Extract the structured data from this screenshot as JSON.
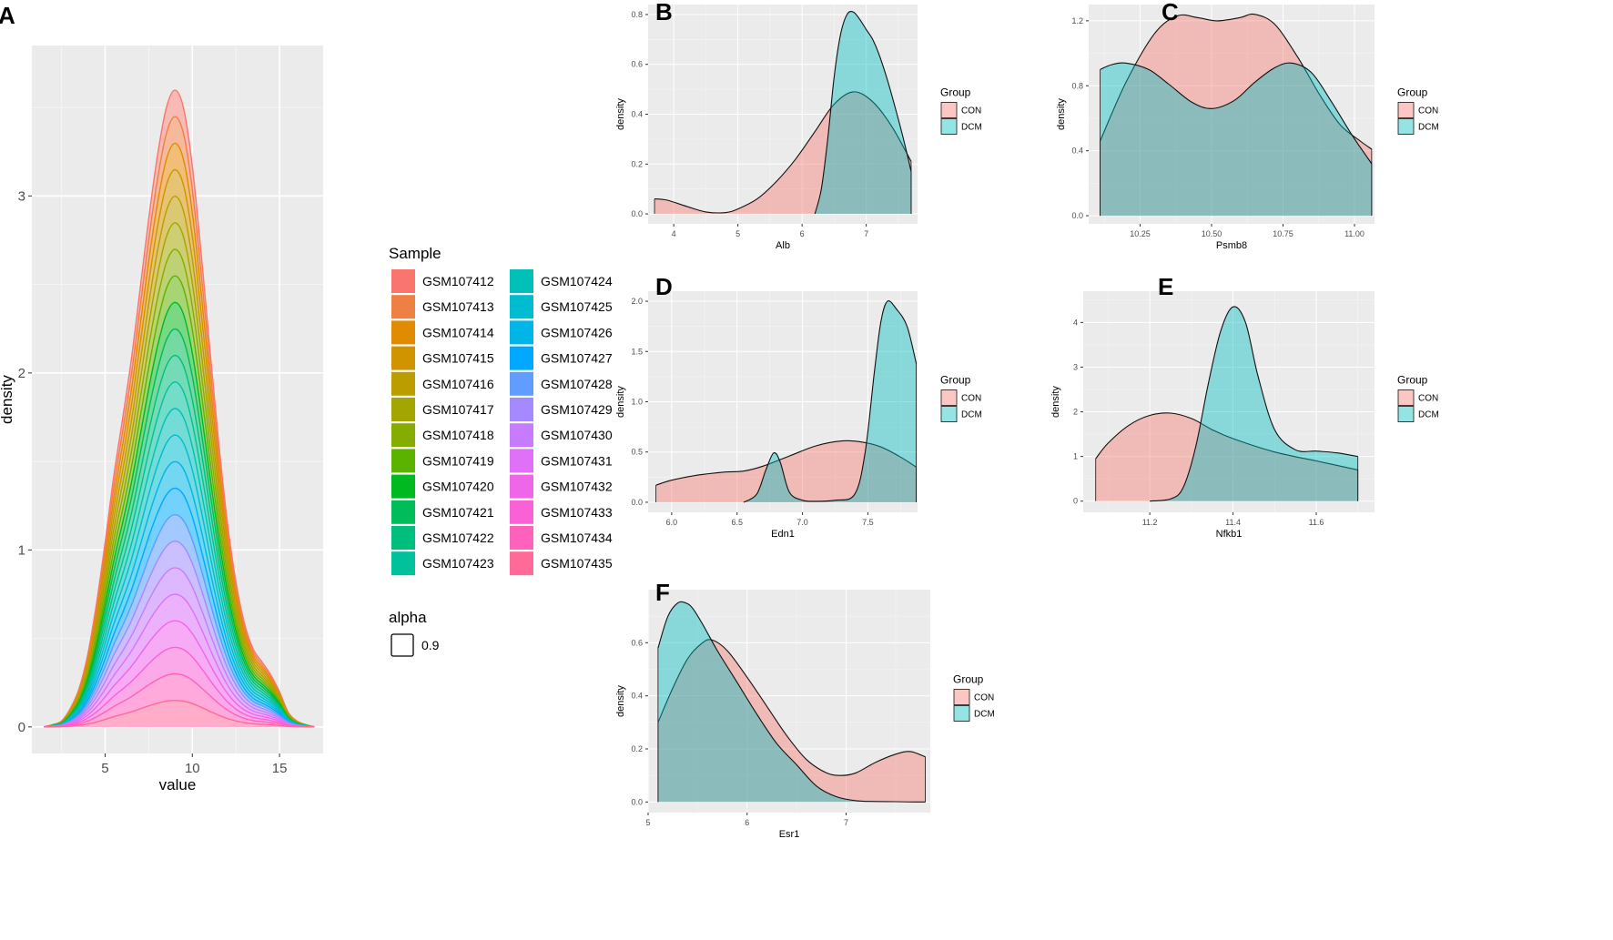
{
  "chart_data": [
    {
      "panel": "A",
      "type": "area",
      "title": "",
      "xlabel": "value",
      "ylabel": "density",
      "xlim": [
        0.8,
        17.5
      ],
      "ylim": [
        -0.15,
        3.85
      ],
      "x_ticks": [
        5,
        10,
        15
      ],
      "y_ticks": [
        0,
        1,
        2,
        3
      ],
      "grid": true,
      "legend": {
        "title": "Sample",
        "position": "right",
        "entries": [
          {
            "label": "GSM107412",
            "color": "#F8766D"
          },
          {
            "label": "GSM107413",
            "color": "#EE8043"
          },
          {
            "label": "GSM107414",
            "color": "#E08B00"
          },
          {
            "label": "GSM107415",
            "color": "#CF9400"
          },
          {
            "label": "GSM107416",
            "color": "#BB9D00"
          },
          {
            "label": "GSM107417",
            "color": "#A3A500"
          },
          {
            "label": "GSM107418",
            "color": "#85AD00"
          },
          {
            "label": "GSM107419",
            "color": "#5BB300"
          },
          {
            "label": "GSM107420",
            "color": "#00B81F"
          },
          {
            "label": "GSM107421",
            "color": "#00BC59"
          },
          {
            "label": "GSM107422",
            "color": "#00BF7D"
          },
          {
            "label": "GSM107423",
            "color": "#00C19C"
          },
          {
            "label": "GSM107424",
            "color": "#00C0B8"
          },
          {
            "label": "GSM107425",
            "color": "#00BCD1"
          },
          {
            "label": "GSM107426",
            "color": "#00B5E7"
          },
          {
            "label": "GSM107427",
            "color": "#00A9FF"
          },
          {
            "label": "GSM107428",
            "color": "#619CFF"
          },
          {
            "label": "GSM107429",
            "color": "#A58AFF"
          },
          {
            "label": "GSM107430",
            "color": "#C77CFF"
          },
          {
            "label": "GSM107431",
            "color": "#DF70F8"
          },
          {
            "label": "GSM107432",
            "color": "#F066E9"
          },
          {
            "label": "GSM107433",
            "color": "#FB61D7"
          },
          {
            "label": "GSM107434",
            "color": "#FF62BC"
          },
          {
            "label": "GSM107435",
            "color": "#FF6A98"
          }
        ],
        "alpha_title": "alpha",
        "alpha_value": "0.9"
      },
      "stacked_series_count": 24,
      "stacked_density_x": [
        1.5,
        2.0,
        2.5,
        3.0,
        3.5,
        4.0,
        4.5,
        5.0,
        5.5,
        6.0,
        6.5,
        7.0,
        7.5,
        8.0,
        8.5,
        9.0,
        9.5,
        10.0,
        10.5,
        11.0,
        11.5,
        12.0,
        12.5,
        13.0,
        13.5,
        14.0,
        14.5,
        15.0,
        15.5,
        16.0,
        16.5,
        17.0
      ],
      "stacked_density_top": [
        0.0,
        0.02,
        0.05,
        0.15,
        0.3,
        0.55,
        0.9,
        1.3,
        1.7,
        2.0,
        2.3,
        2.65,
        3.0,
        3.3,
        3.52,
        3.6,
        3.5,
        3.2,
        2.75,
        2.25,
        1.75,
        1.3,
        0.95,
        0.7,
        0.55,
        0.48,
        0.4,
        0.28,
        0.12,
        0.05,
        0.02,
        0.0
      ]
    },
    {
      "panel": "B",
      "type": "area",
      "xlabel": "Alb",
      "ylabel": "density",
      "xlim": [
        3.6,
        7.8
      ],
      "ylim": [
        -0.04,
        0.84
      ],
      "x_ticks": [
        4,
        5,
        6,
        7
      ],
      "y_ticks": [
        0.0,
        0.2,
        0.4,
        0.6,
        0.8
      ],
      "legend": {
        "title": "Group",
        "position": "right",
        "entries": [
          {
            "label": "CON",
            "color": "#F8766D"
          },
          {
            "label": "DCM",
            "color": "#00BFC4"
          }
        ]
      },
      "series": [
        {
          "name": "CON",
          "x": [
            3.7,
            3.9,
            4.2,
            4.5,
            4.8,
            5.0,
            5.3,
            5.6,
            5.9,
            6.2,
            6.5,
            6.8,
            7.1,
            7.4,
            7.7
          ],
          "values": [
            0.06,
            0.055,
            0.03,
            0.008,
            0.005,
            0.02,
            0.06,
            0.13,
            0.22,
            0.33,
            0.44,
            0.49,
            0.45,
            0.35,
            0.21
          ]
        },
        {
          "name": "DCM",
          "x": [
            6.2,
            6.3,
            6.4,
            6.5,
            6.6,
            6.7,
            6.8,
            6.9,
            7.0,
            7.1,
            7.2,
            7.35,
            7.5,
            7.6,
            7.7
          ],
          "values": [
            0.0,
            0.1,
            0.3,
            0.55,
            0.72,
            0.8,
            0.81,
            0.78,
            0.74,
            0.7,
            0.64,
            0.52,
            0.38,
            0.28,
            0.17
          ]
        }
      ]
    },
    {
      "panel": "C",
      "type": "area",
      "xlabel": "Psmb8",
      "ylabel": "density",
      "xlim": [
        10.07,
        11.07
      ],
      "ylim": [
        -0.05,
        1.3
      ],
      "x_ticks": [
        10.25,
        10.5,
        10.75,
        11.0
      ],
      "y_ticks": [
        0.0,
        0.4,
        0.8,
        1.2
      ],
      "legend": {
        "title": "Group",
        "position": "right",
        "entries": [
          {
            "label": "CON",
            "color": "#F8766D"
          },
          {
            "label": "DCM",
            "color": "#00BFC4"
          }
        ]
      },
      "series": [
        {
          "name": "CON",
          "x": [
            10.11,
            10.2,
            10.3,
            10.38,
            10.45,
            10.52,
            10.6,
            10.65,
            10.72,
            10.8,
            10.88,
            10.95,
            11.02,
            11.06
          ],
          "values": [
            0.46,
            0.82,
            1.12,
            1.23,
            1.22,
            1.2,
            1.22,
            1.24,
            1.18,
            0.98,
            0.74,
            0.56,
            0.46,
            0.41
          ]
        },
        {
          "name": "DCM",
          "x": [
            10.11,
            10.15,
            10.2,
            10.28,
            10.35,
            10.43,
            10.5,
            10.58,
            10.65,
            10.72,
            10.78,
            10.85,
            10.92,
            10.99,
            11.06
          ],
          "values": [
            0.9,
            0.93,
            0.94,
            0.9,
            0.81,
            0.7,
            0.66,
            0.71,
            0.82,
            0.91,
            0.94,
            0.88,
            0.7,
            0.5,
            0.32
          ]
        }
      ]
    },
    {
      "panel": "D",
      "type": "area",
      "xlabel": "Edn1",
      "ylabel": "density",
      "xlim": [
        5.82,
        7.88
      ],
      "ylim": [
        -0.1,
        2.1
      ],
      "x_ticks": [
        6.0,
        6.5,
        7.0,
        7.5
      ],
      "y_ticks": [
        0.0,
        0.5,
        1.0,
        1.5,
        2.0
      ],
      "legend": {
        "title": "Group",
        "position": "right",
        "entries": [
          {
            "label": "CON",
            "color": "#F8766D"
          },
          {
            "label": "DCM",
            "color": "#00BFC4"
          }
        ]
      },
      "series": [
        {
          "name": "CON",
          "x": [
            5.88,
            6.0,
            6.2,
            6.4,
            6.55,
            6.7,
            6.9,
            7.1,
            7.3,
            7.45,
            7.6,
            7.75,
            7.87
          ],
          "values": [
            0.17,
            0.22,
            0.27,
            0.3,
            0.31,
            0.36,
            0.46,
            0.56,
            0.61,
            0.6,
            0.55,
            0.45,
            0.35
          ]
        },
        {
          "name": "DCM",
          "x": [
            6.55,
            6.65,
            6.72,
            6.78,
            6.83,
            6.9,
            7.0,
            7.1,
            7.25,
            7.4,
            7.48,
            7.55,
            7.6,
            7.65,
            7.72,
            7.8,
            7.87
          ],
          "values": [
            0.0,
            0.08,
            0.32,
            0.49,
            0.4,
            0.1,
            0.02,
            0.01,
            0.02,
            0.08,
            0.5,
            1.3,
            1.8,
            2.0,
            1.92,
            1.75,
            1.38
          ]
        }
      ]
    },
    {
      "panel": "E",
      "type": "area",
      "xlabel": "Nfkb1",
      "ylabel": "density",
      "xlim": [
        11.04,
        11.74
      ],
      "ylim": [
        -0.25,
        4.7
      ],
      "x_ticks": [
        11.2,
        11.4,
        11.6
      ],
      "y_ticks": [
        0,
        1,
        2,
        3,
        4
      ],
      "legend": {
        "title": "Group",
        "position": "right",
        "entries": [
          {
            "label": "CON",
            "color": "#F8766D"
          },
          {
            "label": "DCM",
            "color": "#00BFC4"
          }
        ]
      },
      "series": [
        {
          "name": "CON",
          "x": [
            11.07,
            11.1,
            11.15,
            11.2,
            11.25,
            11.3,
            11.35,
            11.4,
            11.5,
            11.6,
            11.7
          ],
          "values": [
            0.95,
            1.3,
            1.7,
            1.92,
            1.97,
            1.85,
            1.6,
            1.4,
            1.1,
            0.9,
            0.7
          ]
        },
        {
          "name": "DCM",
          "x": [
            11.2,
            11.25,
            11.28,
            11.31,
            11.34,
            11.37,
            11.4,
            11.43,
            11.46,
            11.5,
            11.55,
            11.6,
            11.65,
            11.7
          ],
          "values": [
            0.0,
            0.05,
            0.3,
            1.2,
            2.6,
            3.8,
            4.35,
            4.0,
            2.8,
            1.6,
            1.15,
            1.12,
            1.08,
            1.0
          ]
        }
      ]
    },
    {
      "panel": "F",
      "type": "area",
      "xlabel": "Esr1",
      "ylabel": "density",
      "xlim": [
        5.0,
        7.85
      ],
      "ylim": [
        -0.04,
        0.8
      ],
      "x_ticks": [
        5,
        6,
        7
      ],
      "y_ticks": [
        0.0,
        0.2,
        0.4,
        0.6
      ],
      "legend": {
        "title": "Group",
        "position": "right",
        "entries": [
          {
            "label": "CON",
            "color": "#F8766D"
          },
          {
            "label": "DCM",
            "color": "#00BFC4"
          }
        ]
      },
      "series": [
        {
          "name": "CON",
          "x": [
            5.1,
            5.25,
            5.4,
            5.55,
            5.65,
            5.8,
            6.0,
            6.2,
            6.4,
            6.6,
            6.8,
            6.95,
            7.1,
            7.3,
            7.5,
            7.65,
            7.8
          ],
          "values": [
            0.3,
            0.43,
            0.54,
            0.6,
            0.61,
            0.57,
            0.47,
            0.36,
            0.25,
            0.16,
            0.11,
            0.1,
            0.11,
            0.15,
            0.18,
            0.19,
            0.17
          ]
        },
        {
          "name": "DCM",
          "x": [
            5.1,
            5.2,
            5.3,
            5.38,
            5.45,
            5.55,
            5.7,
            5.9,
            6.1,
            6.3,
            6.5,
            6.7,
            6.9,
            7.1,
            7.3,
            7.5,
            7.7,
            7.8
          ],
          "values": [
            0.58,
            0.7,
            0.75,
            0.75,
            0.73,
            0.67,
            0.57,
            0.45,
            0.33,
            0.22,
            0.14,
            0.06,
            0.02,
            0.005,
            0.002,
            0.001,
            0.0,
            0.0
          ]
        }
      ]
    }
  ]
}
